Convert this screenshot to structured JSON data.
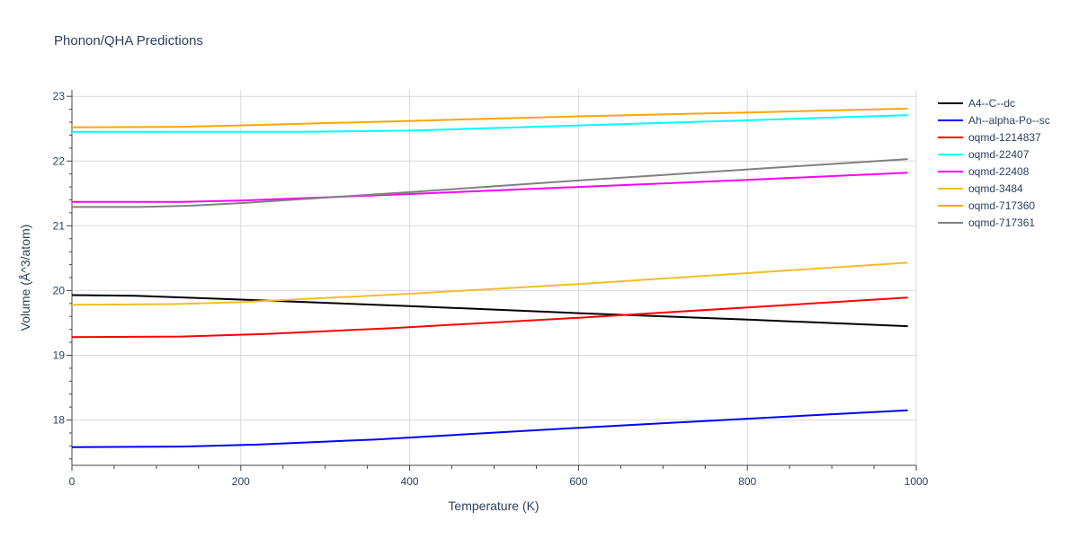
{
  "chart_data": {
    "type": "line",
    "title": "Phonon/QHA Predictions",
    "xlabel": "Temperature (K)",
    "ylabel": "Volume (Å^3/atom)",
    "xlim": [
      0,
      1000
    ],
    "ylim": [
      17.3,
      23.1
    ],
    "xticks": [
      0,
      200,
      400,
      600,
      800,
      1000
    ],
    "yticks": [
      18,
      19,
      20,
      21,
      22,
      23
    ],
    "grid": true,
    "legend_position": "right",
    "series": [
      {
        "name": "A4--C--dc",
        "color": "#000000",
        "x": [
          0,
          75,
          200,
          400,
          600,
          800,
          990
        ],
        "y": [
          19.93,
          19.92,
          19.86,
          19.76,
          19.65,
          19.55,
          19.45
        ]
      },
      {
        "name": "Ah--alpha-Po--sc",
        "color": "#0000ff",
        "x": [
          0,
          130,
          220,
          360,
          600,
          800,
          990
        ],
        "y": [
          17.58,
          17.59,
          17.62,
          17.7,
          17.88,
          18.02,
          18.15
        ]
      },
      {
        "name": "oqmd-1214837",
        "color": "#ff0000",
        "x": [
          0,
          130,
          230,
          380,
          600,
          800,
          990
        ],
        "y": [
          19.28,
          19.29,
          19.33,
          19.42,
          19.58,
          19.74,
          19.89
        ]
      },
      {
        "name": "oqmd-22407",
        "color": "#00ffff",
        "x": [
          0,
          130,
          270,
          400,
          600,
          800,
          990
        ],
        "y": [
          22.45,
          22.45,
          22.45,
          22.47,
          22.55,
          22.63,
          22.71
        ]
      },
      {
        "name": "oqmd-22408",
        "color": "#ff00ff",
        "x": [
          0,
          130,
          200,
          400,
          600,
          800,
          990
        ],
        "y": [
          21.37,
          21.37,
          21.39,
          21.49,
          21.6,
          21.71,
          21.82
        ]
      },
      {
        "name": "oqmd-3484",
        "color": "#f0be28",
        "x": [
          0,
          120,
          200,
          400,
          600,
          800,
          990
        ],
        "y": [
          19.78,
          19.79,
          19.82,
          19.95,
          20.1,
          20.27,
          20.43
        ]
      },
      {
        "name": "oqmd-717360",
        "color": "#ffa500",
        "x": [
          0,
          130,
          200,
          400,
          600,
          800,
          990
        ],
        "y": [
          22.52,
          22.53,
          22.55,
          22.62,
          22.69,
          22.75,
          22.81
        ]
      },
      {
        "name": "oqmd-717361",
        "color": "#808080",
        "x": [
          0,
          80,
          140,
          200,
          400,
          600,
          800,
          990
        ],
        "y": [
          21.29,
          21.29,
          21.31,
          21.35,
          21.52,
          21.7,
          21.87,
          22.03
        ]
      }
    ]
  }
}
